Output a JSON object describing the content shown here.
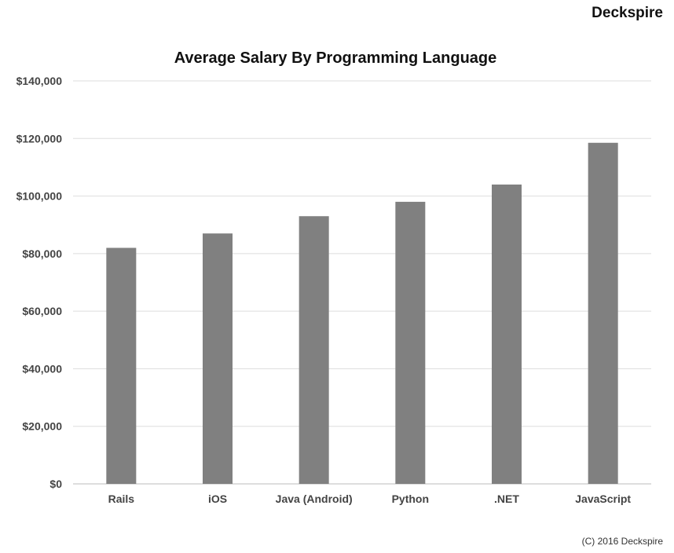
{
  "brand": "Deckspire",
  "footer": "(C) 2016 Deckspire",
  "chart_data": {
    "type": "bar",
    "title": "Average Salary By Programming Language",
    "categories": [
      "Rails",
      "iOS",
      "Java (Android)",
      "Python",
      ".NET",
      "JavaScript"
    ],
    "values": [
      82000,
      87000,
      93000,
      98000,
      104000,
      118500
    ],
    "ylim": [
      0,
      140000
    ],
    "yticks": [
      0,
      20000,
      40000,
      60000,
      80000,
      100000,
      120000,
      140000
    ],
    "ytick_labels": [
      "$0",
      "$20,000",
      "$40,000",
      "$60,000",
      "$80,000",
      "$100,000",
      "$120,000",
      "$140,000"
    ],
    "xlabel": "",
    "ylabel": "",
    "grid": true,
    "legend": "none",
    "bar_color": "#808080",
    "grid_color": "#dddddd"
  }
}
